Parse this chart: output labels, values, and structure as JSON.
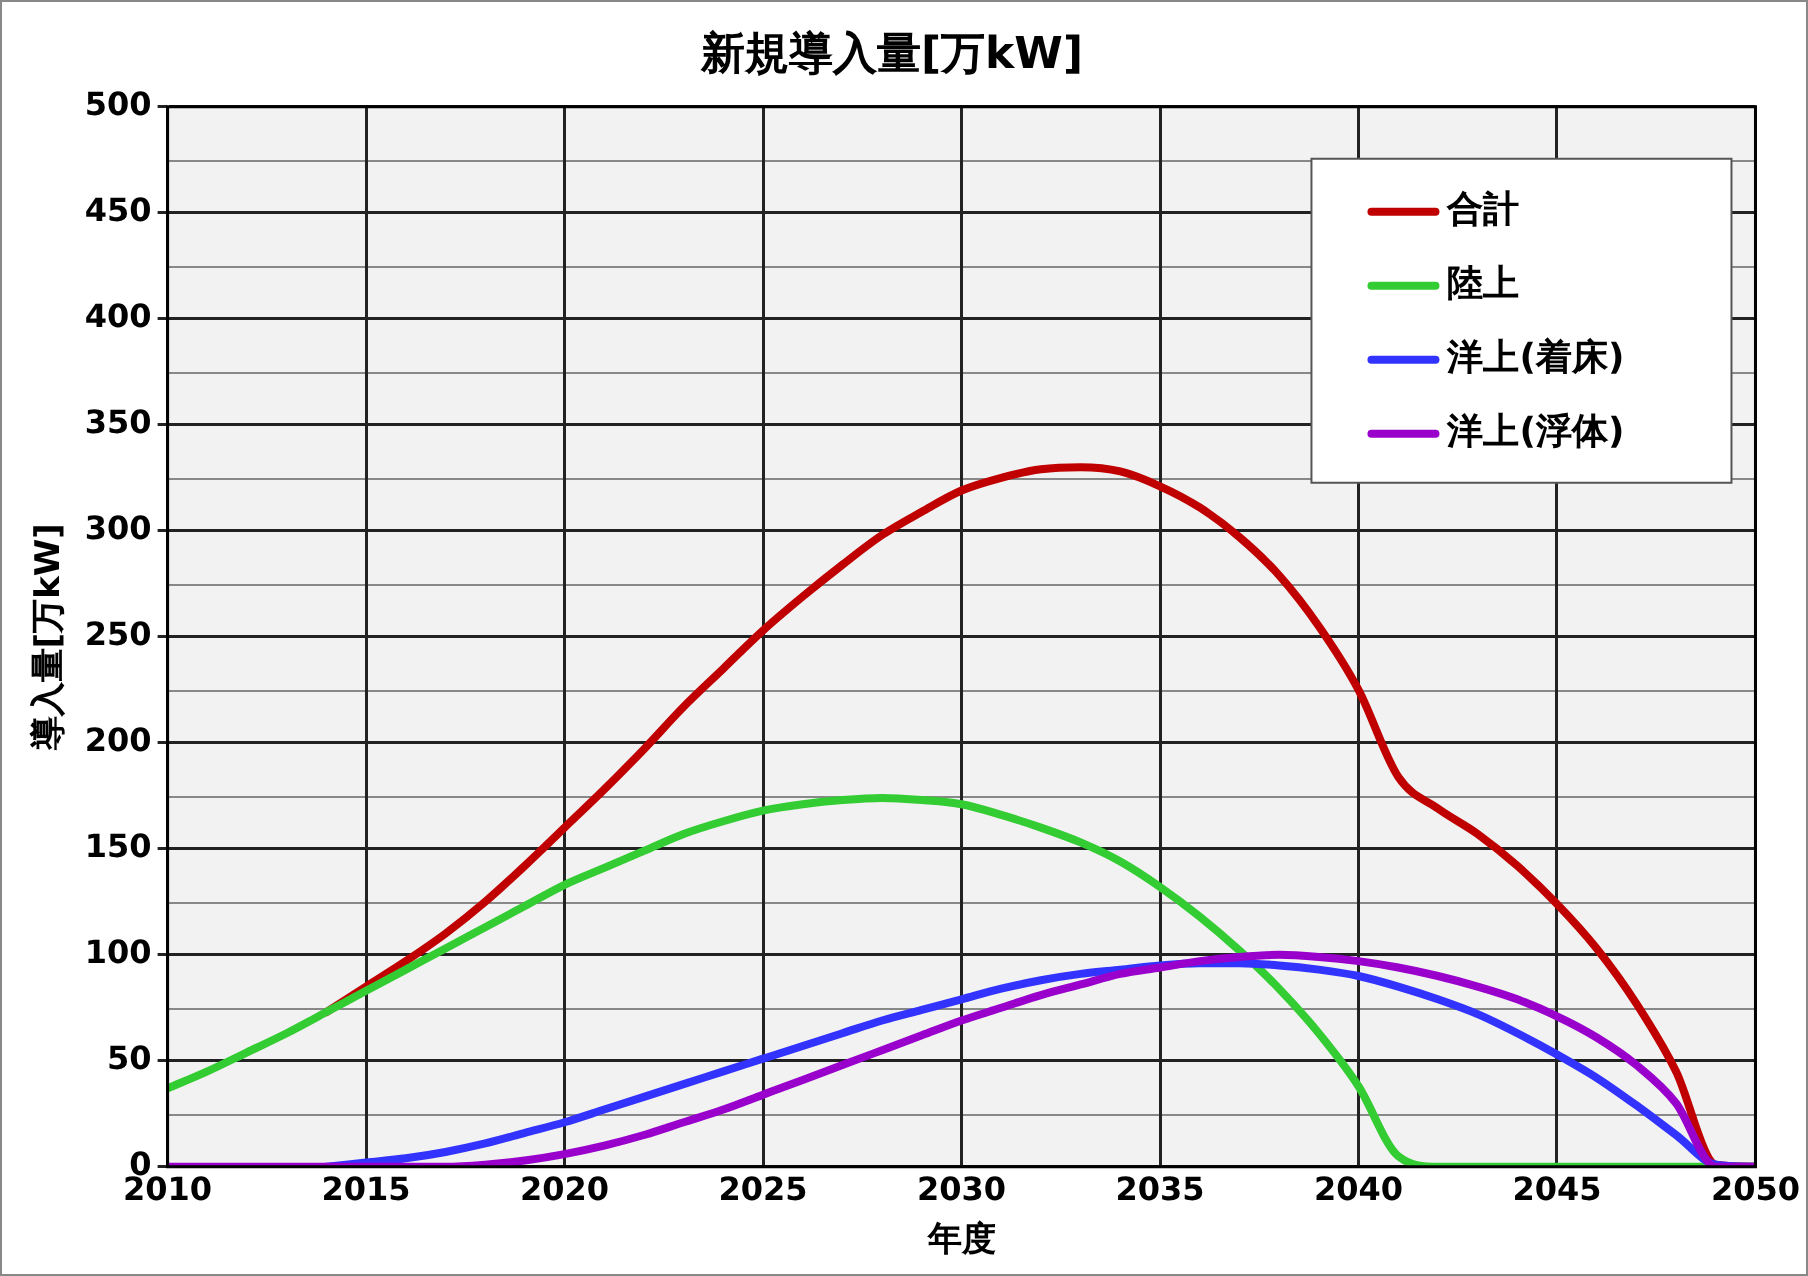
{
  "chart_data": {
    "type": "line",
    "title": "新規導入量[万kW]",
    "xlabel": "年度",
    "ylabel": "導入量[万kW]",
    "x": [
      2010,
      2011,
      2012,
      2013,
      2014,
      2015,
      2016,
      2017,
      2018,
      2019,
      2020,
      2021,
      2022,
      2023,
      2024,
      2025,
      2026,
      2027,
      2028,
      2029,
      2030,
      2031,
      2032,
      2033,
      2034,
      2035,
      2036,
      2037,
      2038,
      2039,
      2040,
      2041,
      2042,
      2043,
      2044,
      2045,
      2046,
      2047,
      2048,
      2049,
      2050
    ],
    "xlim": [
      2010,
      2050
    ],
    "xticks": [
      2010,
      2015,
      2020,
      2025,
      2030,
      2035,
      2040,
      2045,
      2050
    ],
    "ylim": [
      0,
      500
    ],
    "yticks": [
      0,
      50,
      100,
      150,
      200,
      250,
      300,
      350,
      400,
      450,
      500
    ],
    "grid": true,
    "legend": "top right",
    "marker": "none",
    "line_style": "solid",
    "series": [
      {
        "name": "合計",
        "color": "#c00000",
        "values": [
          null,
          null,
          null,
          null,
          73,
          85,
          97,
          110,
          125,
          142,
          160,
          178,
          197,
          217,
          235,
          253,
          269,
          284,
          298,
          309,
          319,
          325,
          329,
          330,
          328,
          321,
          311,
          297,
          279,
          255,
          225,
          184,
          169,
          157,
          142,
          124,
          103,
          77,
          45,
          1,
          0
        ]
      },
      {
        "name": "陸上",
        "color": "#33cc33",
        "values": [
          37,
          45,
          54,
          63,
          73,
          83,
          93,
          103,
          113,
          123,
          133,
          141,
          149,
          157,
          163,
          168,
          171,
          173,
          174,
          173,
          171,
          166,
          160,
          153,
          144,
          132,
          118,
          102,
          84,
          63,
          38,
          5,
          0,
          0,
          0,
          0,
          0,
          0,
          0,
          0,
          0
        ]
      },
      {
        "name": "洋上(着床)",
        "color": "#3333ff",
        "values": [
          null,
          null,
          null,
          null,
          0,
          2,
          4,
          7,
          11,
          16,
          21,
          27,
          33,
          39,
          45,
          51,
          57,
          63,
          69,
          74,
          79,
          84,
          88,
          91,
          93,
          95,
          96,
          96,
          95,
          93,
          90,
          85,
          79,
          72,
          63,
          53,
          42,
          29,
          15,
          1,
          0
        ]
      },
      {
        "name": "洋上(浮体)",
        "color": "#9900cc",
        "values": [
          0,
          0,
          0,
          0,
          0,
          0,
          0,
          0,
          1,
          3,
          6,
          10,
          15,
          21,
          27,
          34,
          41,
          48,
          55,
          62,
          69,
          75,
          81,
          86,
          91,
          94,
          97,
          99,
          100,
          99,
          97,
          94,
          90,
          85,
          79,
          71,
          61,
          48,
          30,
          0,
          0
        ]
      }
    ]
  }
}
